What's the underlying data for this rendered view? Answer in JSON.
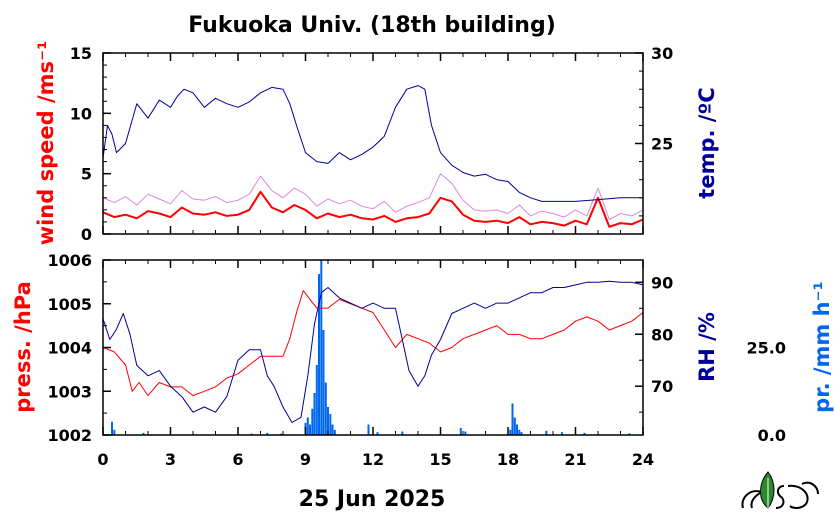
{
  "title": "Fukuoka Univ. (18th building)",
  "date_label": "25 Jun 2025",
  "colors": {
    "wind": "#ff0000",
    "wind_gust": "#dd88dd",
    "temperature": "#000099",
    "pressure": "#ff0000",
    "humidity": "#000099",
    "precip": "#0066ee",
    "axes": "#000000"
  },
  "logo_icon": "leaf-logo-icon",
  "chart_data": [
    {
      "type": "line",
      "panel": "top",
      "xlim": [
        0,
        24
      ],
      "x_ticks": [
        "0",
        "3",
        "6",
        "9",
        "12",
        "15",
        "18",
        "21",
        "24"
      ],
      "left_axis": {
        "label": "wind speed /ms⁻¹",
        "ylim": [
          0,
          15
        ],
        "ticks": [
          "0",
          "5",
          "10",
          "15"
        ]
      },
      "right_axis": {
        "label": "temp. /ºC",
        "ylim": [
          20,
          30
        ],
        "ticks": [
          "25",
          "30"
        ]
      },
      "grid": false,
      "series": [
        {
          "axis": "left",
          "role": "wind-speed",
          "x": [
            0,
            0.5,
            1,
            1.5,
            2,
            2.5,
            3,
            3.5,
            4,
            4.5,
            5,
            5.5,
            6,
            6.5,
            7,
            7.5,
            8,
            8.5,
            9,
            9.5,
            10,
            10.5,
            11,
            11.5,
            12,
            12.5,
            13,
            13.5,
            14,
            14.5,
            15,
            15.5,
            16,
            16.5,
            17,
            17.5,
            18,
            18.5,
            19,
            19.5,
            20,
            20.5,
            21,
            21.5,
            22,
            22.5,
            23,
            23.5,
            24
          ],
          "y": [
            1.8,
            1.4,
            1.6,
            1.3,
            1.9,
            1.7,
            1.4,
            2.2,
            1.7,
            1.6,
            1.8,
            1.5,
            1.6,
            2.0,
            3.5,
            2.2,
            1.8,
            2.4,
            2.0,
            1.3,
            1.7,
            1.4,
            1.6,
            1.3,
            1.2,
            1.5,
            1.0,
            1.3,
            1.4,
            1.7,
            3.0,
            2.7,
            1.6,
            1.1,
            1.0,
            1.1,
            0.9,
            1.4,
            0.8,
            1.0,
            0.9,
            0.7,
            1.1,
            0.8,
            3.0,
            0.6,
            0.9,
            0.8,
            1.2
          ]
        },
        {
          "axis": "left",
          "role": "wind-gust",
          "x": [
            0,
            0.5,
            1,
            1.5,
            2,
            2.5,
            3,
            3.5,
            4,
            4.5,
            5,
            5.5,
            6,
            6.5,
            7,
            7.5,
            8,
            8.5,
            9,
            9.5,
            10,
            10.5,
            11,
            11.5,
            12,
            12.5,
            13,
            13.5,
            14,
            14.5,
            15,
            15.5,
            16,
            16.5,
            17,
            17.5,
            18,
            18.5,
            19,
            19.5,
            20,
            20.5,
            21,
            21.5,
            22,
            22.5,
            23,
            23.5,
            24
          ],
          "y": [
            3.0,
            2.6,
            3.1,
            2.4,
            3.3,
            2.9,
            2.5,
            3.6,
            2.9,
            2.8,
            3.1,
            2.6,
            2.8,
            3.3,
            4.8,
            3.6,
            3.0,
            3.8,
            3.3,
            2.3,
            2.9,
            2.5,
            2.8,
            2.3,
            2.1,
            2.7,
            1.8,
            2.3,
            2.6,
            3.0,
            5.0,
            4.2,
            2.8,
            2.0,
            1.9,
            2.0,
            1.7,
            2.4,
            1.5,
            1.9,
            1.7,
            1.4,
            2.0,
            1.5,
            3.8,
            1.2,
            1.7,
            1.5,
            2.0
          ]
        },
        {
          "axis": "right",
          "role": "temperature",
          "x": [
            0,
            0.2,
            0.4,
            0.6,
            1,
            1.5,
            2,
            2.5,
            3,
            3.3,
            3.6,
            4,
            4.5,
            5,
            5.5,
            6,
            6.5,
            7,
            7.5,
            8,
            8.3,
            8.6,
            9,
            9.5,
            10,
            10.5,
            11,
            11.5,
            12,
            12.5,
            13,
            13.5,
            14,
            14.3,
            14.6,
            15,
            15.5,
            16,
            16.5,
            17,
            17.5,
            18,
            18.5,
            19,
            19.5,
            20,
            21,
            22,
            23,
            24
          ],
          "y": [
            24.2,
            26.0,
            25.5,
            24.5,
            25.0,
            27.2,
            26.4,
            27.4,
            27.0,
            27.6,
            28.0,
            27.8,
            27.0,
            27.5,
            27.2,
            27.0,
            27.3,
            27.8,
            28.1,
            28.0,
            27.2,
            26.0,
            24.5,
            24.0,
            23.9,
            24.5,
            24.1,
            24.4,
            24.8,
            25.4,
            27.0,
            28.0,
            28.2,
            28.0,
            26.0,
            24.5,
            23.8,
            23.4,
            23.2,
            23.3,
            23.0,
            22.9,
            22.3,
            22.0,
            21.8,
            21.8,
            21.8,
            21.9,
            22.0,
            22.0
          ]
        }
      ]
    },
    {
      "type": "line",
      "panel": "bottom",
      "xlim": [
        0,
        24
      ],
      "x_ticks": [
        "0",
        "3",
        "6",
        "9",
        "12",
        "15",
        "18",
        "21",
        "24"
      ],
      "left_axis": {
        "label": "press. /hPa",
        "ylim": [
          1002,
          1006
        ],
        "ticks": [
          "1002",
          "1003",
          "1004",
          "1005",
          "1006"
        ]
      },
      "right_axis": {
        "label": "RH /%",
        "ylim": [
          60.6,
          94.3
        ],
        "ticks": [
          "70",
          "80",
          "90"
        ]
      },
      "precip_axis": {
        "label": "pr. /mm h⁻¹",
        "ylim": [
          0,
          50
        ],
        "ticks": [
          "0.0",
          "25.0"
        ]
      },
      "grid": false,
      "series": [
        {
          "axis": "left",
          "role": "pressure",
          "x": [
            0,
            0.5,
            1,
            1.3,
            1.6,
            2,
            2.5,
            3,
            3.5,
            4,
            4.5,
            5,
            5.5,
            6,
            6.5,
            7,
            7.5,
            8,
            8.3,
            8.6,
            8.9,
            9.2,
            9.5,
            10,
            10.5,
            11,
            11.5,
            12,
            12.5,
            13,
            13.5,
            14,
            14.5,
            15,
            15.5,
            16,
            16.5,
            17,
            17.5,
            18,
            18.5,
            19,
            19.5,
            20,
            20.5,
            21,
            21.5,
            22,
            22.5,
            23,
            23.5,
            24
          ],
          "y": [
            1004.0,
            1003.9,
            1003.6,
            1003.0,
            1003.2,
            1002.9,
            1003.2,
            1003.1,
            1003.1,
            1002.9,
            1003.0,
            1003.1,
            1003.3,
            1003.4,
            1003.6,
            1003.8,
            1003.8,
            1003.8,
            1004.2,
            1004.8,
            1005.3,
            1005.1,
            1004.9,
            1004.9,
            1005.1,
            1005.0,
            1004.9,
            1004.8,
            1004.4,
            1004.0,
            1004.3,
            1004.2,
            1004.1,
            1003.9,
            1004.0,
            1004.2,
            1004.3,
            1004.4,
            1004.5,
            1004.3,
            1004.3,
            1004.2,
            1004.2,
            1004.3,
            1004.4,
            1004.6,
            1004.7,
            1004.6,
            1004.4,
            1004.5,
            1004.6,
            1004.8
          ]
        },
        {
          "axis": "right",
          "role": "relative-humidity",
          "x": [
            0,
            0.3,
            0.6,
            0.9,
            1.2,
            1.5,
            2,
            2.5,
            3,
            3.5,
            4,
            4.5,
            5,
            5.5,
            6,
            6.5,
            7,
            7.3,
            7.6,
            8,
            8.4,
            8.8,
            9.1,
            9.4,
            9.7,
            10,
            10.5,
            11,
            11.5,
            12,
            12.5,
            13,
            13.3,
            13.6,
            14,
            14.3,
            14.6,
            15,
            15.5,
            16,
            16.5,
            17,
            17.5,
            18,
            18.5,
            19,
            19.5,
            20,
            20.5,
            21,
            21.5,
            22,
            22.5,
            23,
            23.5,
            24
          ],
          "y": [
            83,
            79,
            81,
            84,
            80,
            74,
            72,
            73,
            70,
            68,
            65,
            66,
            65,
            68,
            75,
            77,
            77,
            72,
            70,
            66,
            63,
            64,
            72,
            82,
            88,
            89,
            87,
            86,
            85,
            86,
            85,
            85,
            79,
            73,
            70,
            72,
            76,
            79,
            84,
            85,
            86,
            85,
            86,
            86,
            87,
            88,
            88,
            89,
            89,
            89.5,
            90,
            90,
            90.2,
            90,
            90,
            89.5
          ]
        },
        {
          "axis": "precip",
          "role": "precipitation",
          "type": "bar",
          "x": [
            0.4,
            0.5,
            1.8,
            6.6,
            7.3,
            7.9,
            9.0,
            9.1,
            9.2,
            9.3,
            9.4,
            9.5,
            9.6,
            9.7,
            9.8,
            9.9,
            10.0,
            10.1,
            10.2,
            10.3,
            11.8,
            12.2,
            13.3,
            15.9,
            16.1,
            18.1,
            18.2,
            18.3,
            18.4,
            18.5,
            18.6,
            19.7,
            20.4,
            21.4,
            23.4
          ],
          "y": [
            3.8,
            1.5,
            0.6,
            0.4,
            0.6,
            0.4,
            3.5,
            5.0,
            3.0,
            7.5,
            12.0,
            20.0,
            46.0,
            50.0,
            30.0,
            15.0,
            8.0,
            6.0,
            3.0,
            1.5,
            3.0,
            0.8,
            1.0,
            2.0,
            1.0,
            1.5,
            9.0,
            5.0,
            3.0,
            1.5,
            0.8,
            1.2,
            0.8,
            0.6,
            0.5
          ]
        }
      ]
    }
  ]
}
